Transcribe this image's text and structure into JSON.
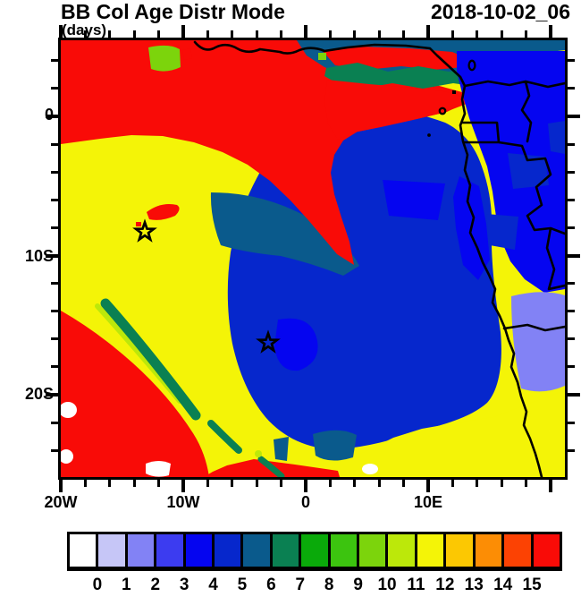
{
  "header": {
    "title": "BB Col Age Distr Mode",
    "timestamp": "2018-10-02_06",
    "units_label": "(days)"
  },
  "chart_data": {
    "type": "heatmap",
    "title": "BB Col Age Distr Mode",
    "time": "2018-10-02_06",
    "units": "days",
    "description": "Filled-contour map of biomass-burning column age distribution mode over the southeast Atlantic and southern Africa",
    "x_axis": {
      "tick_labels": [
        "20W",
        "10W",
        "0",
        "10E"
      ],
      "minor_tick_interval_deg": 2,
      "range": [
        "20W",
        "21E"
      ]
    },
    "y_axis": {
      "tick_labels": [
        "0",
        "10S",
        "20S"
      ],
      "minor_tick_interval_deg": 2,
      "range": [
        "5N",
        "26S"
      ]
    },
    "colorbar": {
      "position": "bottom",
      "tick_labels": [
        "0",
        "1",
        "2",
        "3",
        "4",
        "5",
        "6",
        "7",
        "8",
        "9",
        "10",
        "11",
        "12",
        "13",
        "14",
        "15"
      ],
      "colors": [
        "#ffffff",
        "#c6c6f7",
        "#8282f5",
        "#3c3cf0",
        "#0505f0",
        "#0627cc",
        "#0a5a8c",
        "#0a8052",
        "#0aaa0a",
        "#3cc40f",
        "#7cd40c",
        "#bce80a",
        "#f4f407",
        "#fcc802",
        "#fc8d05",
        "#fc4203",
        "#f90b07"
      ]
    },
    "markers": [
      {
        "shape": "star",
        "approx_position": "13W, 8S"
      },
      {
        "shape": "star",
        "approx_position": "3W, 16S"
      }
    ],
    "regions": [
      {
        "color": "#f90b07",
        "value_range_days": ">15",
        "where": "band across the north and large southwest area"
      },
      {
        "color": "#f4f407",
        "value_range_days": "11-12",
        "where": "broad west/central plume and bottom-right corner"
      },
      {
        "color": "#0627cc",
        "value_range_days": "4-5",
        "where": "large central-eastern blob over ocean and Congo basin"
      },
      {
        "color": "#0505f0",
        "value_range_days": "3-4",
        "where": "northeast land areas and coastal patches"
      },
      {
        "color": "#0a5a8c",
        "value_range_days": "5-6",
        "where": "northern band and wedges around the blue blob"
      },
      {
        "color": "#0a8052",
        "value_range_days": "6-7",
        "where": "northern squiggle band and southwest diagonal stripe"
      },
      {
        "color": "#8282f5",
        "value_range_days": "1-2",
        "where": "inland Angola strip near right edge"
      },
      {
        "color": "#7cd40c",
        "value_range_days": "9-10",
        "where": "small patch near top left-center"
      },
      {
        "color": "#ffffff",
        "value_range_days": "<0",
        "where": "small patches at lower left"
      }
    ],
    "map_features": [
      "african-west-coastline",
      "country-borders",
      "gulf-of-guinea-islands"
    ]
  }
}
